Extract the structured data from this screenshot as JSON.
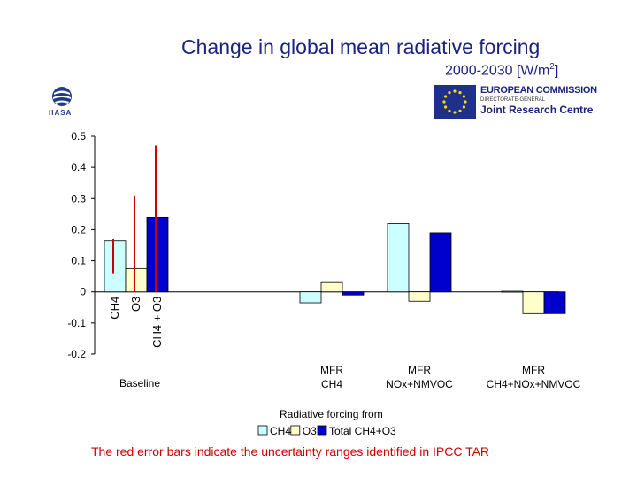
{
  "header": {
    "title": "Change in global mean radiative forcing",
    "subtitle_prefix": "2000-2030 [W/m",
    "subtitle_sup": "2",
    "subtitle_suffix": "]"
  },
  "logos": {
    "iiasa_text": "IIASA",
    "ec_line1": "EUROPEAN COMMISSION",
    "ec_line2": "DIRECTORATE-GENERAL",
    "ec_line3": "Joint Research Centre"
  },
  "colors": {
    "ch4": "#ccffff",
    "o3": "#ffffcc",
    "total": "#0000cc",
    "error_bar": "#cc0000",
    "title": "#1a237e"
  },
  "chart_data": {
    "type": "bar",
    "title": "Change in global mean radiative forcing",
    "ylim": [
      -0.2,
      0.5
    ],
    "yticks": [
      -0.2,
      -0.1,
      0,
      0.1,
      0.2,
      0.3,
      0.4,
      0.5
    ],
    "ytick_labels": [
      "-0.2",
      "-0.1",
      "0",
      "0.1",
      "0.2",
      "0.3",
      "0.4",
      "0.5"
    ],
    "grid": false,
    "categories": [
      "Baseline",
      "MFR CH4",
      "MFR NOx+NMVOC",
      "MFR CH4+NOx+NMVOC"
    ],
    "category_labels": [
      [
        "Baseline"
      ],
      [
        "MFR",
        "CH4"
      ],
      [
        "MFR",
        "NOx+NMVOC"
      ],
      [
        "MFR",
        "CH4+NOx+NMVOC"
      ]
    ],
    "series": [
      {
        "name": "CH4",
        "values": [
          0.165,
          -0.035,
          0.22,
          0.002
        ]
      },
      {
        "name": "O3",
        "values": [
          0.075,
          0.03,
          -0.03,
          -0.07
        ]
      },
      {
        "name": "Total CH4+O3",
        "values": [
          0.24,
          -0.01,
          0.19,
          -0.07
        ]
      }
    ],
    "error_bars": [
      {
        "category": "Baseline",
        "series": "CH4",
        "low": 0.06,
        "high": 0.17
      },
      {
        "category": "Baseline",
        "series": "O3",
        "low": 0.0,
        "high": 0.31
      },
      {
        "category": "Baseline",
        "series": "Total CH4+O3",
        "low": 0.0,
        "high": 0.47
      }
    ],
    "bar_labels": [
      "CH4",
      "O3",
      "CH4 + O3"
    ],
    "legend_title": "Radiative forcing from",
    "legend_position": "bottom",
    "legend_entries": [
      "CH4",
      "O3",
      "Total CH4+O3"
    ]
  },
  "footer": {
    "note": "The red error bars indicate the uncertainty ranges identified in IPCC TAR"
  }
}
